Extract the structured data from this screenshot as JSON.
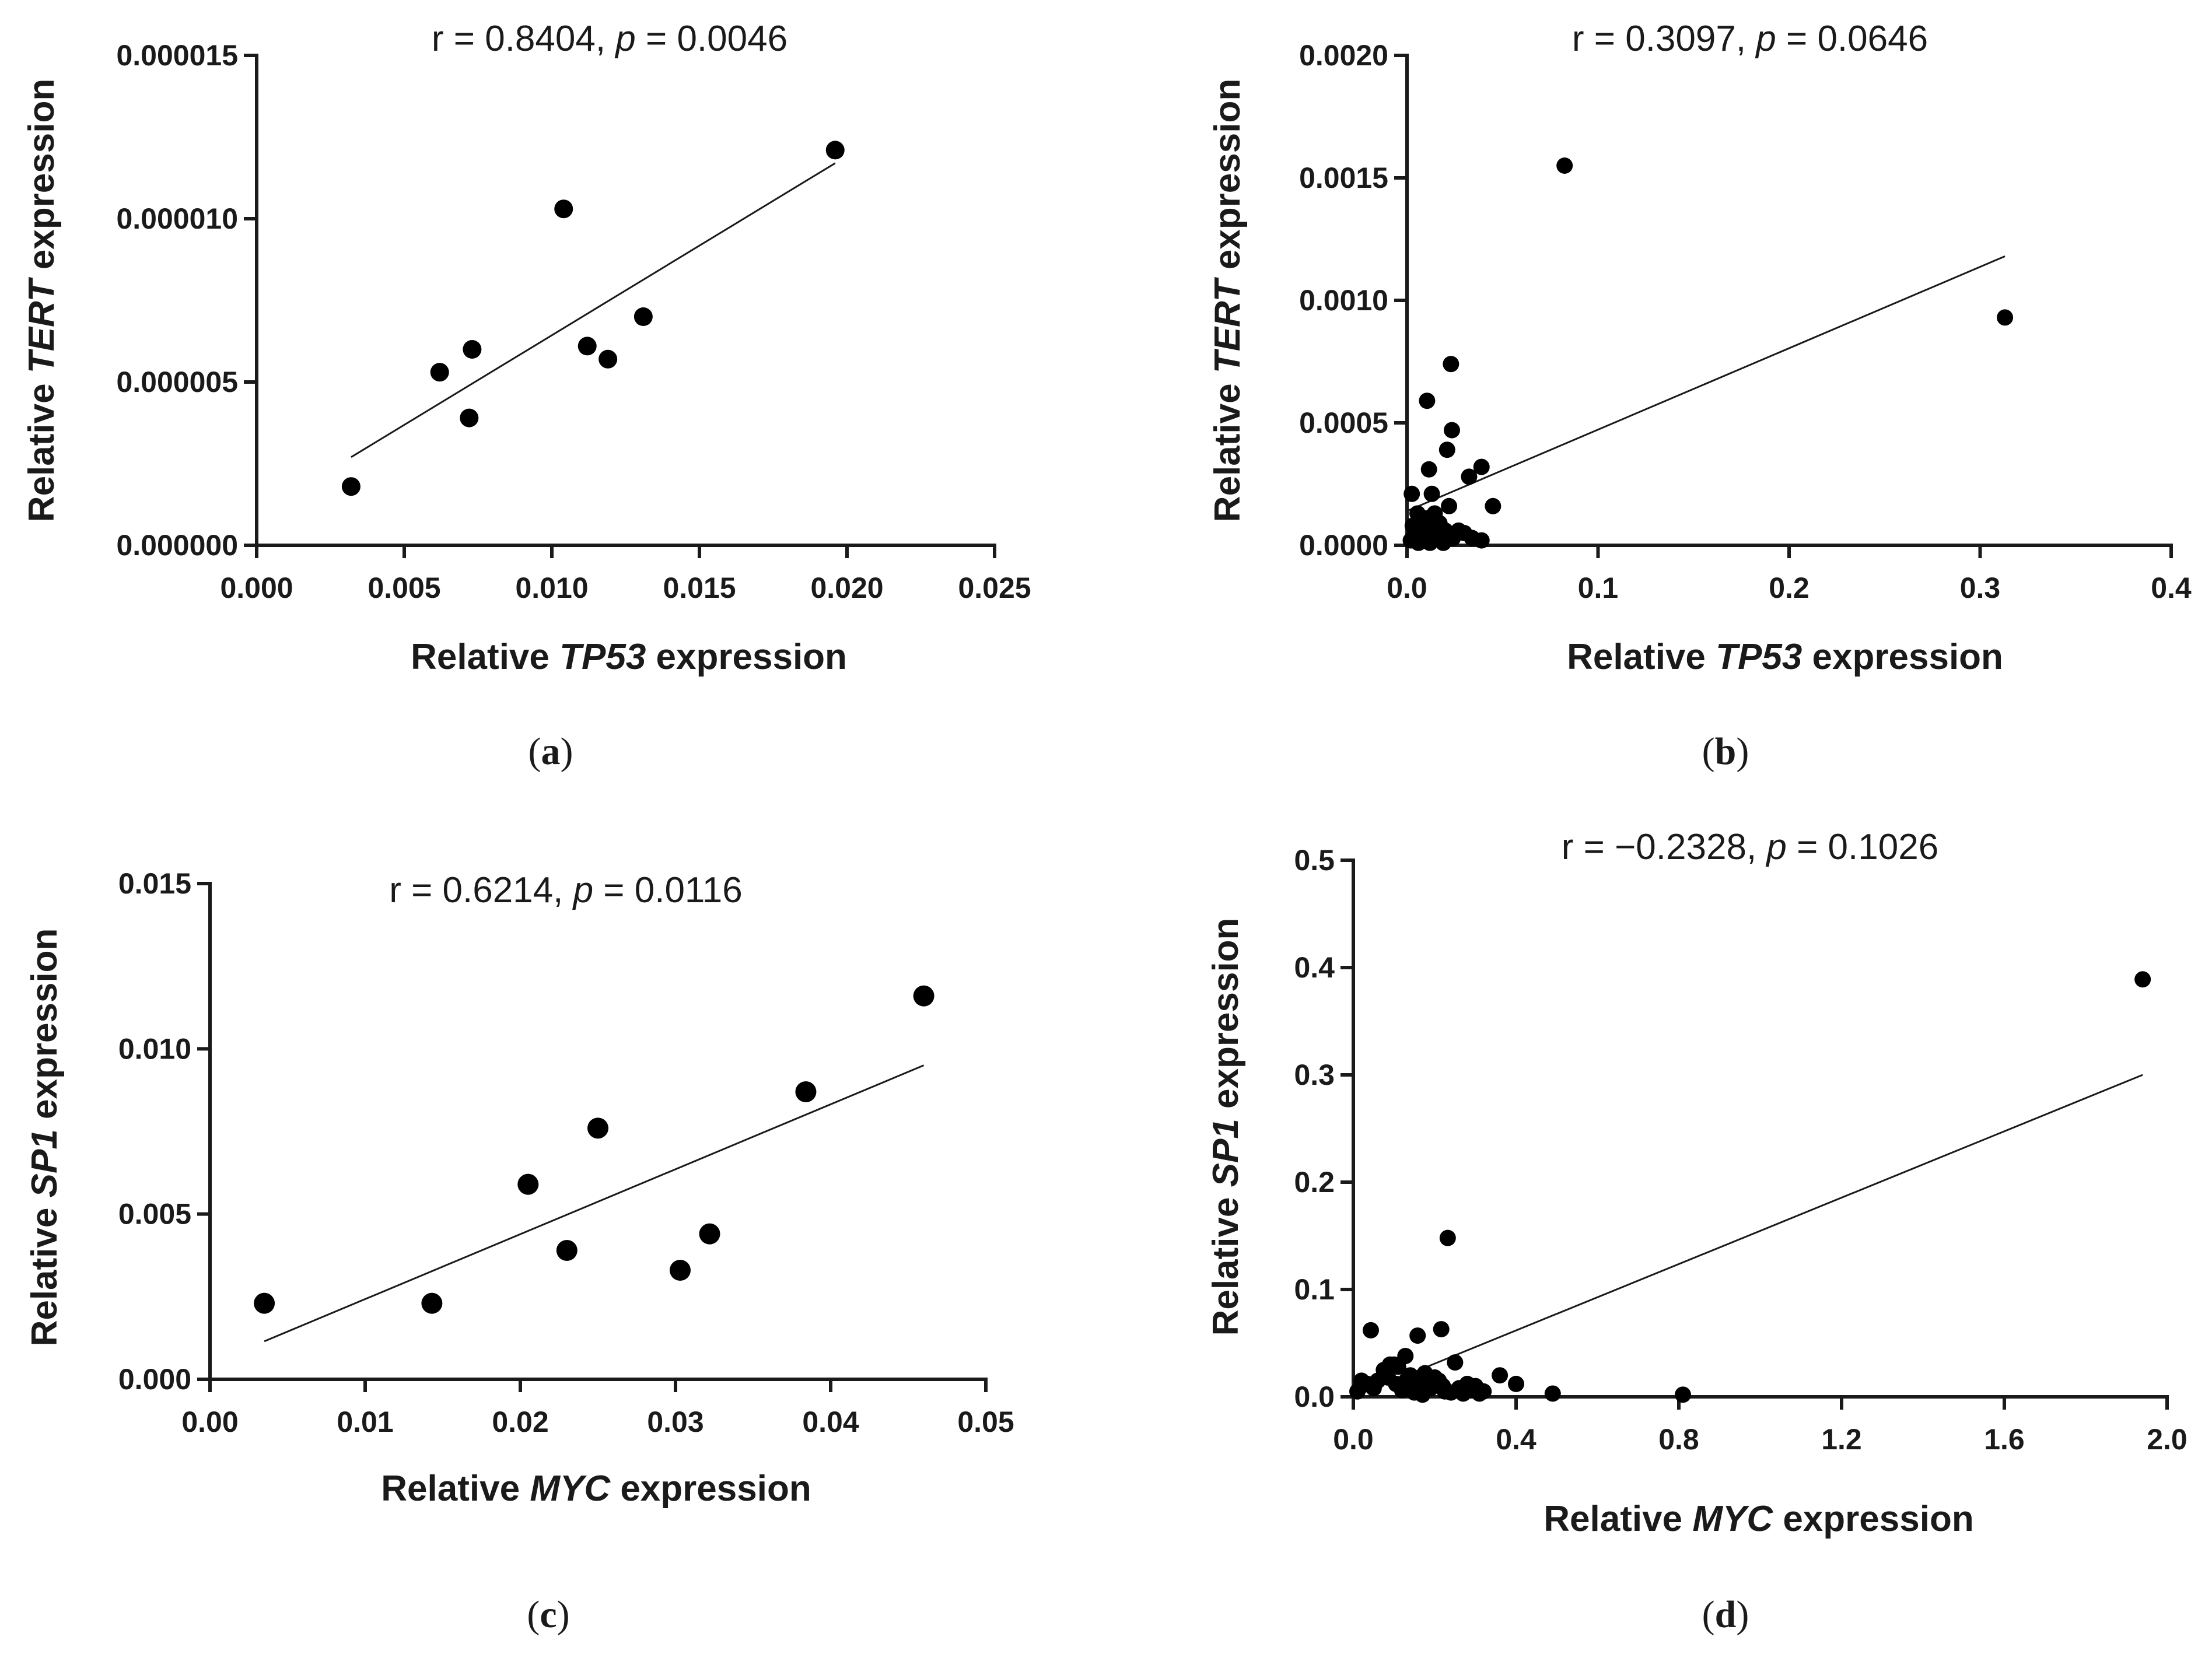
{
  "chart_data": [
    {
      "type": "scatter",
      "panel_label": "a",
      "annotation": {
        "r_text": "r = 0.8404, ",
        "p_symbol": "p",
        "p_text": " = 0.0046"
      },
      "xlabel": {
        "prefix": "Relative ",
        "gene": "TP53",
        "suffix": " expression"
      },
      "ylabel": {
        "prefix": "Relative ",
        "gene": "TERT",
        "suffix": " expression"
      },
      "xlim": [
        0,
        0.025
      ],
      "ylim": [
        0,
        1.5e-05
      ],
      "xticks": [
        0,
        0.005,
        0.01,
        0.015,
        0.02,
        0.025
      ],
      "xtick_labels": [
        "0.000",
        "0.005",
        "0.010",
        "0.015",
        "0.020",
        "0.025"
      ],
      "yticks": [
        0,
        5e-06,
        1e-05,
        1.5e-05
      ],
      "ytick_labels": [
        "0.000000",
        "0.000005",
        "0.000010",
        "0.000015"
      ],
      "points": [
        [
          0.0032,
          1.8e-06
        ],
        [
          0.0062,
          5.3e-06
        ],
        [
          0.0072,
          3.9e-06
        ],
        [
          0.0073,
          6e-06
        ],
        [
          0.0104,
          1.03e-05
        ],
        [
          0.0112,
          6.1e-06
        ],
        [
          0.0119,
          5.7e-06
        ],
        [
          0.0131,
          7e-06
        ],
        [
          0.0196,
          1.21e-05
        ]
      ],
      "fit_line": [
        [
          0.0032,
          2.7e-06
        ],
        [
          0.0196,
          1.17e-05
        ]
      ]
    },
    {
      "type": "scatter",
      "panel_label": "b",
      "annotation": {
        "r_text": "r = 0.3097, ",
        "p_symbol": "p",
        "p_text": " = 0.0646"
      },
      "xlabel": {
        "prefix": "Relative ",
        "gene": "TP53",
        "suffix": " expression"
      },
      "ylabel": {
        "prefix": "Relative ",
        "gene": "TERT",
        "suffix": " expression"
      },
      "xlim": [
        0,
        0.4
      ],
      "ylim": [
        0,
        0.002
      ],
      "xticks": [
        0,
        0.1,
        0.2,
        0.3,
        0.4
      ],
      "xtick_labels": [
        "0.0",
        "0.1",
        "0.2",
        "0.3",
        "0.4"
      ],
      "yticks": [
        0,
        0.0005,
        0.001,
        0.0015,
        0.002
      ],
      "ytick_labels": [
        "0.0000",
        "0.0005",
        "0.0010",
        "0.0015",
        "0.0020"
      ],
      "points": [
        [
          0.0825,
          0.00155
        ],
        [
          0.313,
          0.00093
        ],
        [
          0.023,
          0.00074
        ],
        [
          0.0105,
          0.00059
        ],
        [
          0.0235,
          0.00047
        ],
        [
          0.021,
          0.00039
        ],
        [
          0.039,
          0.00032
        ],
        [
          0.0115,
          0.00031
        ],
        [
          0.0325,
          0.00028
        ],
        [
          0.0025,
          0.00021
        ],
        [
          0.013,
          0.00021
        ],
        [
          0.022,
          0.00016
        ],
        [
          0.045,
          0.00016
        ],
        [
          0.0055,
          0.00013
        ],
        [
          0.0145,
          0.00013
        ],
        [
          0.0095,
          0.00011
        ],
        [
          0.017,
          9e-05
        ],
        [
          0.003,
          8e-05
        ],
        [
          0.011,
          7e-05
        ],
        [
          0.02,
          6e-05
        ],
        [
          0.027,
          6e-05
        ],
        [
          0.03,
          5e-05
        ],
        [
          0.004,
          4e-05
        ],
        [
          0.008,
          3e-05
        ],
        [
          0.016,
          3e-05
        ],
        [
          0.024,
          3e-05
        ],
        [
          0.034,
          3e-05
        ],
        [
          0.039,
          2e-05
        ],
        [
          0.002,
          2e-05
        ],
        [
          0.012,
          1e-05
        ],
        [
          0.019,
          1e-05
        ],
        [
          0.006,
          1e-05
        ]
      ],
      "fit_line": [
        [
          0.0,
          0.00014
        ],
        [
          0.313,
          0.00118
        ]
      ]
    },
    {
      "type": "scatter",
      "panel_label": "c",
      "annotation": {
        "r_text": "r = 0.6214, ",
        "p_symbol": "p",
        "p_text": " = 0.0116"
      },
      "xlabel": {
        "prefix": "Relative ",
        "gene": "MYC",
        "suffix": " expression"
      },
      "ylabel": {
        "prefix": "Relative ",
        "gene": "SP1",
        "suffix": " expression"
      },
      "xlim": [
        0,
        0.05
      ],
      "ylim": [
        0,
        0.015
      ],
      "xticks": [
        0,
        0.01,
        0.02,
        0.03,
        0.04,
        0.05
      ],
      "xtick_labels": [
        "0.00",
        "0.01",
        "0.02",
        "0.03",
        "0.04",
        "0.05"
      ],
      "yticks": [
        0,
        0.005,
        0.01,
        0.015
      ],
      "ytick_labels": [
        "0.000",
        "0.005",
        "0.010",
        "0.015"
      ],
      "points": [
        [
          0.0035,
          0.0023
        ],
        [
          0.0143,
          0.0023
        ],
        [
          0.0205,
          0.0059
        ],
        [
          0.023,
          0.0039
        ],
        [
          0.025,
          0.0076
        ],
        [
          0.0303,
          0.0033
        ],
        [
          0.0322,
          0.0044
        ],
        [
          0.0384,
          0.0087
        ],
        [
          0.046,
          0.0116
        ]
      ],
      "fit_line": [
        [
          0.0035,
          0.00115
        ],
        [
          0.046,
          0.0095
        ]
      ]
    },
    {
      "type": "scatter",
      "panel_label": "d",
      "annotation": {
        "r_text": "r = −0.2328, ",
        "p_symbol": "p",
        "p_text": " = 0.1026"
      },
      "xlabel": {
        "prefix": "Relative ",
        "gene": "MYC",
        "suffix": " expression"
      },
      "ylabel": {
        "prefix": "Relative ",
        "gene": "SP1",
        "suffix": " expression"
      },
      "xlim": [
        0,
        2.0
      ],
      "ylim": [
        0,
        0.5
      ],
      "xticks": [
        0,
        0.4,
        0.8,
        1.2,
        1.6,
        2.0
      ],
      "xtick_labels": [
        "0.0",
        "0.4",
        "0.8",
        "1.2",
        "1.6",
        "2.0"
      ],
      "yticks": [
        0,
        0.1,
        0.2,
        0.3,
        0.4,
        0.5
      ],
      "ytick_labels": [
        "0.0",
        "0.1",
        "0.2",
        "0.3",
        "0.4",
        "0.5"
      ],
      "points": [
        [
          1.94,
          0.389
        ],
        [
          0.232,
          0.148
        ],
        [
          0.043,
          0.062
        ],
        [
          0.216,
          0.063
        ],
        [
          0.158,
          0.057
        ],
        [
          0.36,
          0.02
        ],
        [
          0.25,
          0.032
        ],
        [
          0.128,
          0.038
        ],
        [
          0.09,
          0.03
        ],
        [
          0.075,
          0.025
        ],
        [
          0.11,
          0.028
        ],
        [
          0.176,
          0.022
        ],
        [
          0.2,
          0.018
        ],
        [
          0.14,
          0.02
        ],
        [
          0.06,
          0.015
        ],
        [
          0.02,
          0.015
        ],
        [
          0.035,
          0.012
        ],
        [
          0.16,
          0.012
        ],
        [
          0.19,
          0.008
        ],
        [
          0.22,
          0.01
        ],
        [
          0.26,
          0.008
        ],
        [
          0.28,
          0.012
        ],
        [
          0.3,
          0.01
        ],
        [
          0.32,
          0.005
        ],
        [
          0.4,
          0.012
        ],
        [
          0.49,
          0.003
        ],
        [
          0.81,
          0.002
        ],
        [
          0.01,
          0.005
        ],
        [
          0.05,
          0.008
        ],
        [
          0.12,
          0.006
        ],
        [
          0.15,
          0.004
        ],
        [
          0.17,
          0.002
        ],
        [
          0.24,
          0.004
        ],
        [
          0.27,
          0.003
        ],
        [
          0.31,
          0.003
        ],
        [
          0.08,
          0.022
        ],
        [
          0.1,
          0.03
        ],
        [
          0.13,
          0.015
        ],
        [
          0.085,
          0.018
        ],
        [
          0.105,
          0.012
        ],
        [
          0.21,
          0.015
        ],
        [
          0.225,
          0.005
        ],
        [
          0.185,
          0.01
        ],
        [
          0.29,
          0.006
        ]
      ],
      "fit_line": [
        [
          0.0,
          0.0
        ],
        [
          1.94,
          0.3
        ]
      ]
    }
  ]
}
